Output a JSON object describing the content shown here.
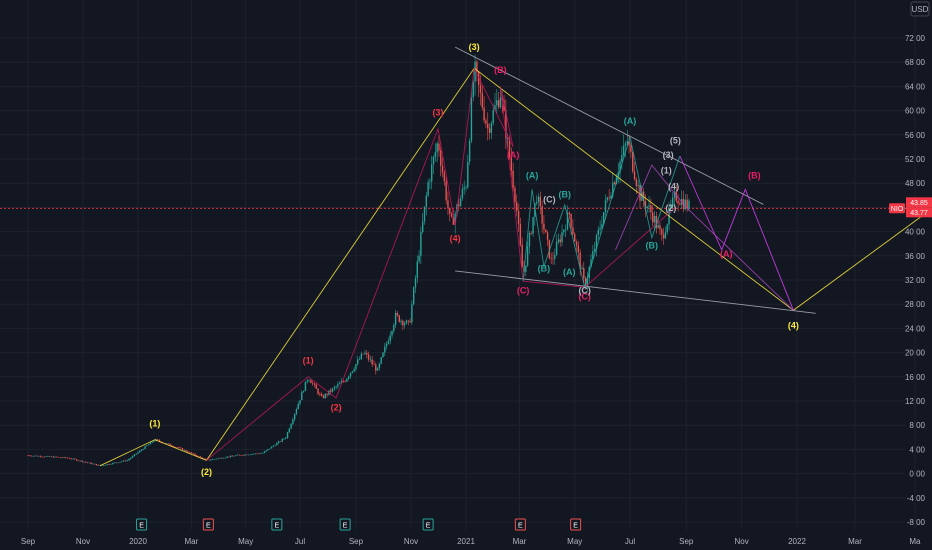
{
  "chart_data": {
    "type": "candlestick",
    "symbol": "NIO",
    "y_axis": {
      "currency": "USD",
      "ticks": [
        "-8.00",
        "-4.00",
        "0.00",
        "4.00",
        "8.00",
        "12.00",
        "16.00",
        "20.00",
        "24.00",
        "28.00",
        "32.00",
        "36.00",
        "40.00",
        "44.00",
        "48.00",
        "52.00",
        "56.00",
        "60.00",
        "64.00",
        "68.00",
        "72.00"
      ],
      "range": [
        -8,
        74
      ]
    },
    "x_axis": {
      "ticks": [
        "Sep",
        "Nov",
        "2020",
        "Mar",
        "May",
        "Jul",
        "Sep",
        "Nov",
        "2021",
        "Mar",
        "May",
        "Jul",
        "Sep",
        "Nov",
        "2022",
        "Mar",
        "Ma"
      ]
    },
    "last_price": "43.85",
    "prev_price": "43.77",
    "price_color_up": "#26a69a",
    "price_color_down": "#ef5350",
    "price_tag_color": "#f23645",
    "price_series": [
      [
        "2019-09-01",
        3.0
      ],
      [
        "2019-10-15",
        2.6
      ],
      [
        "2019-11-20",
        1.3
      ],
      [
        "2019-12-20",
        2.2
      ],
      [
        "2020-01-20",
        5.6
      ],
      [
        "2020-02-20",
        4.0
      ],
      [
        "2020-03-18",
        2.2
      ],
      [
        "2020-04-20",
        3.0
      ],
      [
        "2020-05-20",
        3.4
      ],
      [
        "2020-06-15",
        6.0
      ],
      [
        "2020-07-10",
        16.0
      ],
      [
        "2020-07-25",
        12.5
      ],
      [
        "2020-08-20",
        15.5
      ],
      [
        "2020-09-10",
        20.0
      ],
      [
        "2020-09-25",
        17.0
      ],
      [
        "2020-10-15",
        26.0
      ],
      [
        "2020-10-30",
        24.5
      ],
      [
        "2020-11-20",
        48.0
      ],
      [
        "2020-12-01",
        55.0
      ],
      [
        "2020-12-15",
        41.0
      ],
      [
        "2021-01-01",
        48.0
      ],
      [
        "2021-01-10",
        67.0
      ],
      [
        "2021-01-25",
        57.0
      ],
      [
        "2021-02-08",
        63.0
      ],
      [
        "2021-02-25",
        45.0
      ],
      [
        "2021-03-05",
        32.5
      ],
      [
        "2021-03-20",
        46.0
      ],
      [
        "2021-04-05",
        35.0
      ],
      [
        "2021-04-25",
        43.0
      ],
      [
        "2021-05-12",
        31.0
      ],
      [
        "2021-06-05",
        45.0
      ],
      [
        "2021-06-28",
        55.0
      ],
      [
        "2021-07-12",
        46.0
      ],
      [
        "2021-07-25",
        43.0
      ],
      [
        "2021-08-05",
        39.0
      ],
      [
        "2021-08-20",
        46.0
      ],
      [
        "2021-09-05",
        44.0
      ]
    ],
    "wave_labels": [
      {
        "text": "(1)",
        "color": "#ffeb3b",
        "date": "2020-01-20",
        "price": 7.8
      },
      {
        "text": "(2)",
        "color": "#ffeb3b",
        "date": "2020-03-18",
        "price": -0.2
      },
      {
        "text": "(3)",
        "color": "#ffeb3b",
        "date": "2021-01-10",
        "price": 70.0
      },
      {
        "text": "(4)",
        "color": "#ffeb3b",
        "date": "2021-12-28",
        "price": 24.0
      },
      {
        "text": "(1)",
        "color": "#f23645",
        "date": "2020-07-10",
        "price": 18.2
      },
      {
        "text": "(2)",
        "color": "#f23645",
        "date": "2020-08-10",
        "price": 10.4
      },
      {
        "text": "(3)",
        "color": "#f23645",
        "date": "2020-12-01",
        "price": 59.2
      },
      {
        "text": "(4)",
        "color": "#f23645",
        "date": "2020-12-20",
        "price": 38.4
      },
      {
        "text": "(A)",
        "color": "#e91e63",
        "date": "2021-02-22",
        "price": 52.2
      },
      {
        "text": "(B)",
        "color": "#e91e63",
        "date": "2021-02-08",
        "price": 66.2
      },
      {
        "text": "(C)",
        "color": "#e91e63",
        "date": "2021-03-05",
        "price": 29.8
      },
      {
        "text": "(C)",
        "color": "#e91e63",
        "date": "2021-05-12",
        "price": 28.8
      },
      {
        "text": "(A)",
        "color": "#e91e63",
        "date": "2021-10-15",
        "price": 35.8
      },
      {
        "text": "(B)",
        "color": "#e91e63",
        "date": "2021-11-15",
        "price": 48.8
      },
      {
        "text": "(A)",
        "color": "#26a69a",
        "date": "2021-03-15",
        "price": 48.8
      },
      {
        "text": "(B)",
        "color": "#26a69a",
        "date": "2021-03-28",
        "price": 33.4
      },
      {
        "text": "(A)",
        "color": "#26a69a",
        "date": "2021-04-25",
        "price": 32.8
      },
      {
        "text": "(B)",
        "color": "#26a69a",
        "date": "2021-04-20",
        "price": 45.6
      },
      {
        "text": "(A)",
        "color": "#26a69a",
        "date": "2021-07-01",
        "price": 57.8
      },
      {
        "text": "(B)",
        "color": "#26a69a",
        "date": "2021-07-25",
        "price": 37.2
      },
      {
        "text": "(C)",
        "color": "#b2b5be",
        "date": "2021-04-03",
        "price": 44.8
      },
      {
        "text": "(C)",
        "color": "#b2b5be",
        "date": "2021-05-12",
        "price": 29.8
      },
      {
        "text": "(1)",
        "color": "#b2b5be",
        "date": "2021-08-10",
        "price": 49.6
      },
      {
        "text": "(2)",
        "color": "#b2b5be",
        "date": "2021-08-15",
        "price": 43.4
      },
      {
        "text": "(3)",
        "color": "#b2b5be",
        "date": "2021-08-12",
        "price": 52.2
      },
      {
        "text": "(4)",
        "color": "#b2b5be",
        "date": "2021-08-18",
        "price": 47.0
      },
      {
        "text": "(5)",
        "color": "#b2b5be",
        "date": "2021-08-20",
        "price": 54.6
      }
    ],
    "events": [
      {
        "type": "E",
        "date": "2020-01-05",
        "color": "#26a69a"
      },
      {
        "type": "E",
        "date": "2020-03-20",
        "color": "#ef5350"
      },
      {
        "type": "E",
        "date": "2020-06-05",
        "color": "#26a69a"
      },
      {
        "type": "E",
        "date": "2020-08-20",
        "color": "#26a69a"
      },
      {
        "type": "E",
        "date": "2020-11-20",
        "color": "#26a69a"
      },
      {
        "type": "E",
        "date": "2021-03-02",
        "color": "#ef5350"
      },
      {
        "type": "E",
        "date": "2021-05-02",
        "color": "#ef5350"
      }
    ],
    "overlay_lines": [
      {
        "color": "#ffeb3b",
        "points": [
          [
            "2019-11-20",
            1.3
          ],
          [
            "2020-01-20",
            5.6
          ],
          [
            "2020-03-18",
            2.2
          ],
          [
            "2021-01-10",
            67.0
          ],
          [
            "2021-12-28",
            27.0
          ],
          [
            "2022-05-20",
            44.0
          ]
        ]
      },
      {
        "color": "#b2b5be",
        "points": [
          [
            "2020-12-20",
            70.5
          ],
          [
            "2021-11-25",
            44.5
          ]
        ]
      },
      {
        "color": "#b2b5be",
        "points": [
          [
            "2020-12-20",
            33.5
          ],
          [
            "2022-01-20",
            26.5
          ]
        ]
      },
      {
        "color": "#e040fb",
        "points": [
          [
            "2021-08-25",
            52.5
          ],
          [
            "2021-09-25",
            42.0
          ],
          [
            "2021-10-10",
            37.0
          ],
          [
            "2021-11-05",
            47.0
          ],
          [
            "2021-12-28",
            27.0
          ]
        ]
      },
      {
        "color": "#c2185b",
        "points": [
          [
            "2020-03-18",
            2.2
          ],
          [
            "2020-07-10",
            16.0
          ],
          [
            "2020-08-10",
            12.5
          ],
          [
            "2020-12-01",
            57.0
          ],
          [
            "2020-12-20",
            41.0
          ],
          [
            "2021-01-10",
            67.0
          ]
        ]
      },
      {
        "color": "#c2185b",
        "points": [
          [
            "2021-01-10",
            67.0
          ],
          [
            "2021-02-22",
            54.0
          ],
          [
            "2021-02-08",
            64.0
          ],
          [
            "2021-03-05",
            31.8
          ],
          [
            "2021-05-12",
            30.8
          ],
          [
            "2021-08-20",
            44.0
          ]
        ]
      },
      {
        "color": "#26a69a",
        "points": [
          [
            "2021-03-05",
            31.8
          ],
          [
            "2021-03-15",
            47.0
          ],
          [
            "2021-03-28",
            34.2
          ],
          [
            "2021-04-20",
            44.4
          ],
          [
            "2021-05-12",
            30.8
          ],
          [
            "2021-07-01",
            55.6
          ],
          [
            "2021-07-25",
            39.0
          ],
          [
            "2021-08-25",
            52.5
          ]
        ]
      },
      {
        "color": "#ab47bc",
        "points": [
          [
            "2021-06-15",
            37.0
          ],
          [
            "2021-07-25",
            51.0
          ],
          [
            "2021-09-01",
            44.0
          ],
          [
            "2021-12-28",
            27.0
          ]
        ]
      }
    ]
  }
}
